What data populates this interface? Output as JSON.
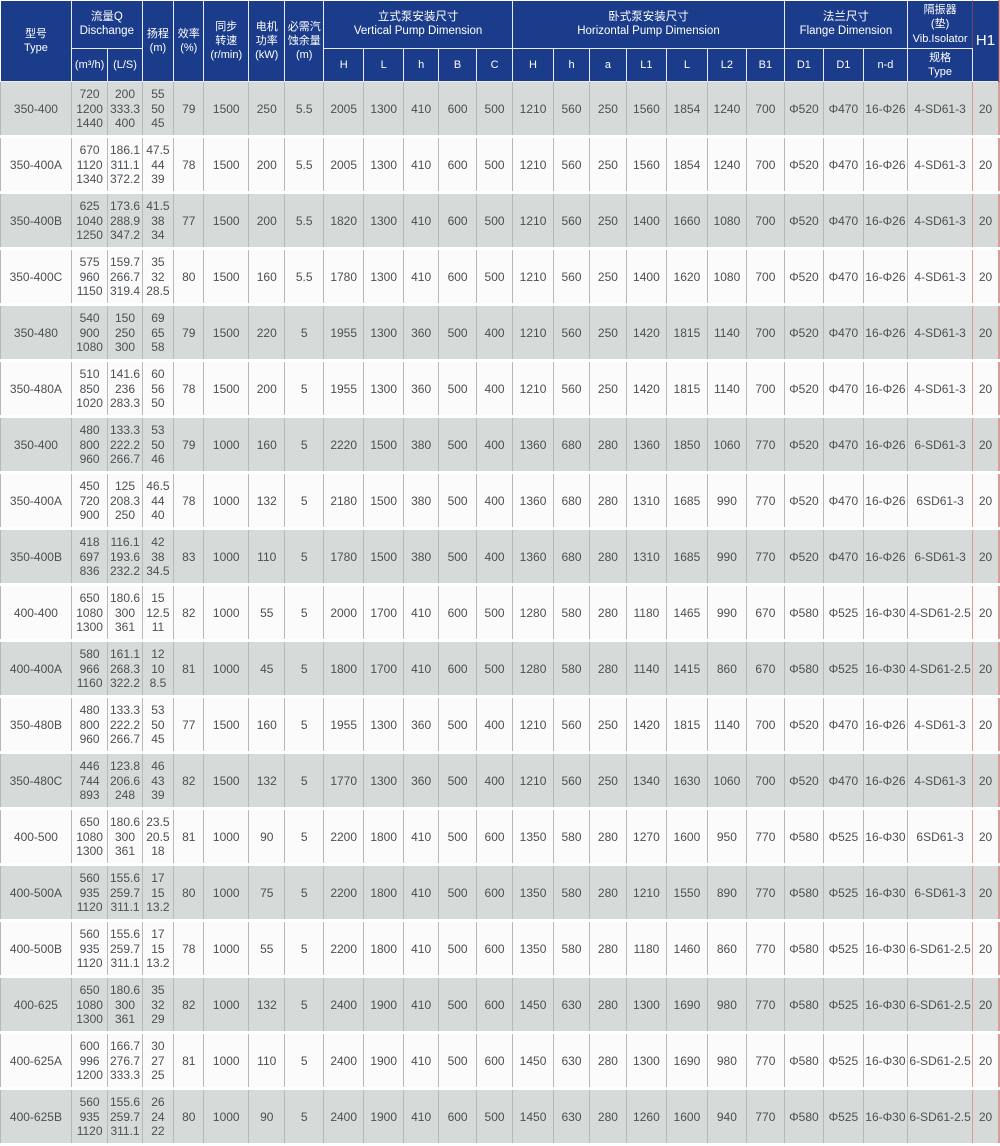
{
  "colors": {
    "header_bg": "#1b3c8a",
    "stripe_row": "#d6dad8",
    "white_row": "#fbfbfb",
    "text": "#4b4f53",
    "accent_red_line": "#ba4a4a"
  },
  "table": {
    "header": {
      "type": "型号\nType",
      "flow_group": "流量Q\nDischange",
      "flow_m3h": "(m³/h)",
      "flow_ls": "(L/S)",
      "head": "扬程\n(m)",
      "efficiency": "效率\n(%)",
      "speed": "同步\n转速\n(r/min)",
      "power": "电机\n功率\n(kW)",
      "npsh": "必需汽\n蚀余量\n(m)",
      "vertical_group": "立式泵安装尺寸\nVertical Pump Dimension",
      "vertical_cols": [
        "H",
        "L",
        "h",
        "B",
        "C"
      ],
      "horizontal_group": "卧式泵安装尺寸\nHorizontal Pump Dimension",
      "horizontal_cols": [
        "H",
        "h",
        "a",
        "L1",
        "L",
        "L2",
        "B1"
      ],
      "flange_group": "法兰尺寸\nFlange Dimension",
      "flange_cols": [
        "D1",
        "D1",
        "n-d"
      ],
      "vib_group": "隔振器\n(垫)\nVib.Isolator",
      "vib_sub": "规格\nType",
      "h1": "H1"
    },
    "rows": [
      {
        "type": "350-400",
        "flow": [
          "720",
          "1200",
          "1440"
        ],
        "flow_ls": [
          "200",
          "333.3",
          "400"
        ],
        "head": [
          "55",
          "50",
          "45"
        ],
        "eff": "79",
        "speed": "1500",
        "power": "250",
        "npsh": "5.5",
        "vertical": [
          "2005",
          "1300",
          "410",
          "600",
          "500"
        ],
        "horizontal": [
          "1210",
          "560",
          "250",
          "1560",
          "1854",
          "1240",
          "700"
        ],
        "flange": [
          "Φ520",
          "Φ470",
          "16-Φ26"
        ],
        "vib": "4-SD61-3",
        "h1": "20"
      },
      {
        "type": "350-400A",
        "flow": [
          "670",
          "1120",
          "1340"
        ],
        "flow_ls": [
          "186.1",
          "311.1",
          "372.2"
        ],
        "head": [
          "47.5",
          "44",
          "39"
        ],
        "eff": "78",
        "speed": "1500",
        "power": "200",
        "npsh": "5.5",
        "vertical": [
          "2005",
          "1300",
          "410",
          "600",
          "500"
        ],
        "horizontal": [
          "1210",
          "560",
          "250",
          "1560",
          "1854",
          "1240",
          "700"
        ],
        "flange": [
          "Φ520",
          "Φ470",
          "16-Φ26"
        ],
        "vib": "4-SD61-3",
        "h1": "20"
      },
      {
        "type": "350-400B",
        "flow": [
          "625",
          "1040",
          "1250"
        ],
        "flow_ls": [
          "173.6",
          "288.9",
          "347.2"
        ],
        "head": [
          "41.5",
          "38",
          "34"
        ],
        "eff": "77",
        "speed": "1500",
        "power": "200",
        "npsh": "5.5",
        "vertical": [
          "1820",
          "1300",
          "410",
          "600",
          "500"
        ],
        "horizontal": [
          "1210",
          "560",
          "250",
          "1400",
          "1660",
          "1080",
          "700"
        ],
        "flange": [
          "Φ520",
          "Φ470",
          "16-Φ26"
        ],
        "vib": "4-SD61-3",
        "h1": "20"
      },
      {
        "type": "350-400C",
        "flow": [
          "575",
          "960",
          "1150"
        ],
        "flow_ls": [
          "159.7",
          "266.7",
          "319.4"
        ],
        "head": [
          "35",
          "32",
          "28.5"
        ],
        "eff": "80",
        "speed": "1500",
        "power": "160",
        "npsh": "5.5",
        "vertical": [
          "1780",
          "1300",
          "410",
          "600",
          "500"
        ],
        "horizontal": [
          "1210",
          "560",
          "250",
          "1400",
          "1620",
          "1080",
          "700"
        ],
        "flange": [
          "Φ520",
          "Φ470",
          "16-Φ26"
        ],
        "vib": "4-SD61-3",
        "h1": "20"
      },
      {
        "type": "350-480",
        "flow": [
          "540",
          "900",
          "1080"
        ],
        "flow_ls": [
          "150",
          "250",
          "300"
        ],
        "head": [
          "69",
          "65",
          "58"
        ],
        "eff": "79",
        "speed": "1500",
        "power": "220",
        "npsh": "5",
        "vertical": [
          "1955",
          "1300",
          "360",
          "500",
          "400"
        ],
        "horizontal": [
          "1210",
          "560",
          "250",
          "1420",
          "1815",
          "1140",
          "700"
        ],
        "flange": [
          "Φ520",
          "Φ470",
          "16-Φ26"
        ],
        "vib": "4-SD61-3",
        "h1": "20"
      },
      {
        "type": "350-480A",
        "flow": [
          "510",
          "850",
          "1020"
        ],
        "flow_ls": [
          "141.6",
          "236",
          "283.3"
        ],
        "head": [
          "60",
          "56",
          "50"
        ],
        "eff": "78",
        "speed": "1500",
        "power": "200",
        "npsh": "5",
        "vertical": [
          "1955",
          "1300",
          "360",
          "500",
          "400"
        ],
        "horizontal": [
          "1210",
          "560",
          "250",
          "1420",
          "1815",
          "1140",
          "700"
        ],
        "flange": [
          "Φ520",
          "Φ470",
          "16-Φ26"
        ],
        "vib": "4-SD61-3",
        "h1": "20"
      },
      {
        "type": "350-400",
        "flow": [
          "480",
          "800",
          "960"
        ],
        "flow_ls": [
          "133.3",
          "222.2",
          "266.7"
        ],
        "head": [
          "53",
          "50",
          "46"
        ],
        "eff": "79",
        "speed": "1000",
        "power": "160",
        "npsh": "5",
        "vertical": [
          "2220",
          "1500",
          "380",
          "500",
          "400"
        ],
        "horizontal": [
          "1360",
          "680",
          "280",
          "1360",
          "1850",
          "1060",
          "770"
        ],
        "flange": [
          "Φ520",
          "Φ470",
          "16-Φ26"
        ],
        "vib": "6-SD61-3",
        "h1": "20"
      },
      {
        "type": "350-400A",
        "flow": [
          "450",
          "720",
          "900"
        ],
        "flow_ls": [
          "125",
          "208.3",
          "250"
        ],
        "head": [
          "46.5",
          "44",
          "40"
        ],
        "eff": "78",
        "speed": "1000",
        "power": "132",
        "npsh": "5",
        "vertical": [
          "2180",
          "1500",
          "380",
          "500",
          "400"
        ],
        "horizontal": [
          "1360",
          "680",
          "280",
          "1310",
          "1685",
          "990",
          "770"
        ],
        "flange": [
          "Φ520",
          "Φ470",
          "16-Φ26"
        ],
        "vib": "6SD61-3",
        "h1": "20"
      },
      {
        "type": "350-400B",
        "flow": [
          "418",
          "697",
          "836"
        ],
        "flow_ls": [
          "116.1",
          "193.6",
          "232.2"
        ],
        "head": [
          "42",
          "38",
          "34.5"
        ],
        "eff": "83",
        "speed": "1000",
        "power": "110",
        "npsh": "5",
        "vertical": [
          "1780",
          "1500",
          "380",
          "500",
          "400"
        ],
        "horizontal": [
          "1360",
          "680",
          "280",
          "1310",
          "1685",
          "990",
          "770"
        ],
        "flange": [
          "Φ520",
          "Φ470",
          "16-Φ26"
        ],
        "vib": "6-SD61-3",
        "h1": "20"
      },
      {
        "type": "400-400",
        "flow": [
          "650",
          "1080",
          "1300"
        ],
        "flow_ls": [
          "180.6",
          "300",
          "361"
        ],
        "head": [
          "15",
          "12.5",
          "11"
        ],
        "eff": "82",
        "speed": "1000",
        "power": "55",
        "npsh": "5",
        "vertical": [
          "2000",
          "1700",
          "410",
          "600",
          "500"
        ],
        "horizontal": [
          "1280",
          "580",
          "280",
          "1180",
          "1465",
          "990",
          "670"
        ],
        "flange": [
          "Φ580",
          "Φ525",
          "16-Φ30"
        ],
        "vib": "4-SD61-2.5",
        "h1": "20"
      },
      {
        "type": "400-400A",
        "flow": [
          "580",
          "966",
          "1160"
        ],
        "flow_ls": [
          "161.1",
          "268.3",
          "322.2"
        ],
        "head": [
          "12",
          "10",
          "8.5"
        ],
        "eff": "81",
        "speed": "1000",
        "power": "45",
        "npsh": "5",
        "vertical": [
          "1800",
          "1700",
          "410",
          "600",
          "500"
        ],
        "horizontal": [
          "1280",
          "580",
          "280",
          "1140",
          "1415",
          "860",
          "670"
        ],
        "flange": [
          "Φ580",
          "Φ525",
          "16-Φ30"
        ],
        "vib": "4-SD61-2.5",
        "h1": "20"
      },
      {
        "type": "350-480B",
        "flow": [
          "480",
          "800",
          "960"
        ],
        "flow_ls": [
          "133.3",
          "222.2",
          "266.7"
        ],
        "head": [
          "53",
          "50",
          "45"
        ],
        "eff": "77",
        "speed": "1500",
        "power": "160",
        "npsh": "5",
        "vertical": [
          "1955",
          "1300",
          "360",
          "500",
          "400"
        ],
        "horizontal": [
          "1210",
          "560",
          "250",
          "1420",
          "1815",
          "1140",
          "700"
        ],
        "flange": [
          "Φ520",
          "Φ470",
          "16-Φ26"
        ],
        "vib": "4-SD61-3",
        "h1": "20"
      },
      {
        "type": "350-480C",
        "flow": [
          "446",
          "744",
          "893"
        ],
        "flow_ls": [
          "123.8",
          "206.6",
          "248"
        ],
        "head": [
          "46",
          "43",
          "39"
        ],
        "eff": "82",
        "speed": "1500",
        "power": "132",
        "npsh": "5",
        "vertical": [
          "1770",
          "1300",
          "360",
          "500",
          "400"
        ],
        "horizontal": [
          "1210",
          "560",
          "250",
          "1340",
          "1630",
          "1060",
          "700"
        ],
        "flange": [
          "Φ520",
          "Φ470",
          "16-Φ26"
        ],
        "vib": "4-SD61-3",
        "h1": "20"
      },
      {
        "type": "400-500",
        "flow": [
          "650",
          "1080",
          "1300"
        ],
        "flow_ls": [
          "180.6",
          "300",
          "361"
        ],
        "head": [
          "23.5",
          "20.5",
          "18"
        ],
        "eff": "81",
        "speed": "1000",
        "power": "90",
        "npsh": "5",
        "vertical": [
          "2200",
          "1800",
          "410",
          "500",
          "600"
        ],
        "horizontal": [
          "1350",
          "580",
          "280",
          "1270",
          "1600",
          "950",
          "770"
        ],
        "flange": [
          "Φ580",
          "Φ525",
          "16-Φ30"
        ],
        "vib": "6SD61-3",
        "h1": "20"
      },
      {
        "type": "400-500A",
        "flow": [
          "560",
          "935",
          "1120"
        ],
        "flow_ls": [
          "155.6",
          "259.7",
          "311.1"
        ],
        "head": [
          "17",
          "15",
          "13.2"
        ],
        "eff": "80",
        "speed": "1000",
        "power": "75",
        "npsh": "5",
        "vertical": [
          "2200",
          "1800",
          "410",
          "500",
          "600"
        ],
        "horizontal": [
          "1350",
          "580",
          "280",
          "1210",
          "1550",
          "890",
          "770"
        ],
        "flange": [
          "Φ580",
          "Φ525",
          "16-Φ30"
        ],
        "vib": "6-SD61-3",
        "h1": "20"
      },
      {
        "type": "400-500B",
        "flow": [
          "560",
          "935",
          "1120"
        ],
        "flow_ls": [
          "155.6",
          "259.7",
          "311.1"
        ],
        "head": [
          "17",
          "15",
          "13.2"
        ],
        "eff": "78",
        "speed": "1000",
        "power": "55",
        "npsh": "5",
        "vertical": [
          "2200",
          "1800",
          "410",
          "500",
          "600"
        ],
        "horizontal": [
          "1350",
          "580",
          "280",
          "1180",
          "1460",
          "860",
          "770"
        ],
        "flange": [
          "Φ580",
          "Φ525",
          "16-Φ30"
        ],
        "vib": "6-SD61-2.5",
        "h1": "20"
      },
      {
        "type": "400-625",
        "flow": [
          "650",
          "1080",
          "1300"
        ],
        "flow_ls": [
          "180.6",
          "300",
          "361"
        ],
        "head": [
          "35",
          "32",
          "29"
        ],
        "eff": "82",
        "speed": "1000",
        "power": "132",
        "npsh": "5",
        "vertical": [
          "2400",
          "1900",
          "410",
          "500",
          "600"
        ],
        "horizontal": [
          "1450",
          "630",
          "280",
          "1300",
          "1690",
          "980",
          "770"
        ],
        "flange": [
          "Φ580",
          "Φ525",
          "16-Φ30"
        ],
        "vib": "6-SD61-2.5",
        "h1": "20"
      },
      {
        "type": "400-625A",
        "flow": [
          "600",
          "996",
          "1200"
        ],
        "flow_ls": [
          "166.7",
          "276.7",
          "333.3"
        ],
        "head": [
          "30",
          "27",
          "25"
        ],
        "eff": "81",
        "speed": "1000",
        "power": "110",
        "npsh": "5",
        "vertical": [
          "2400",
          "1900",
          "410",
          "500",
          "600"
        ],
        "horizontal": [
          "1450",
          "630",
          "280",
          "1300",
          "1690",
          "980",
          "770"
        ],
        "flange": [
          "Φ580",
          "Φ525",
          "16-Φ30"
        ],
        "vib": "6-SD61-2.5",
        "h1": "20"
      },
      {
        "type": "400-625B",
        "flow": [
          "560",
          "935",
          "1120"
        ],
        "flow_ls": [
          "155.6",
          "259.7",
          "311.1"
        ],
        "head": [
          "26",
          "24",
          "22"
        ],
        "eff": "80",
        "speed": "1000",
        "power": "90",
        "npsh": "5",
        "vertical": [
          "2400",
          "1900",
          "410",
          "600",
          "500"
        ],
        "horizontal": [
          "1450",
          "630",
          "280",
          "1260",
          "1600",
          "940",
          "770"
        ],
        "flange": [
          "Φ580",
          "Φ525",
          "16-Φ30"
        ],
        "vib": "6-SD61-2.5",
        "h1": "20"
      }
    ]
  }
}
